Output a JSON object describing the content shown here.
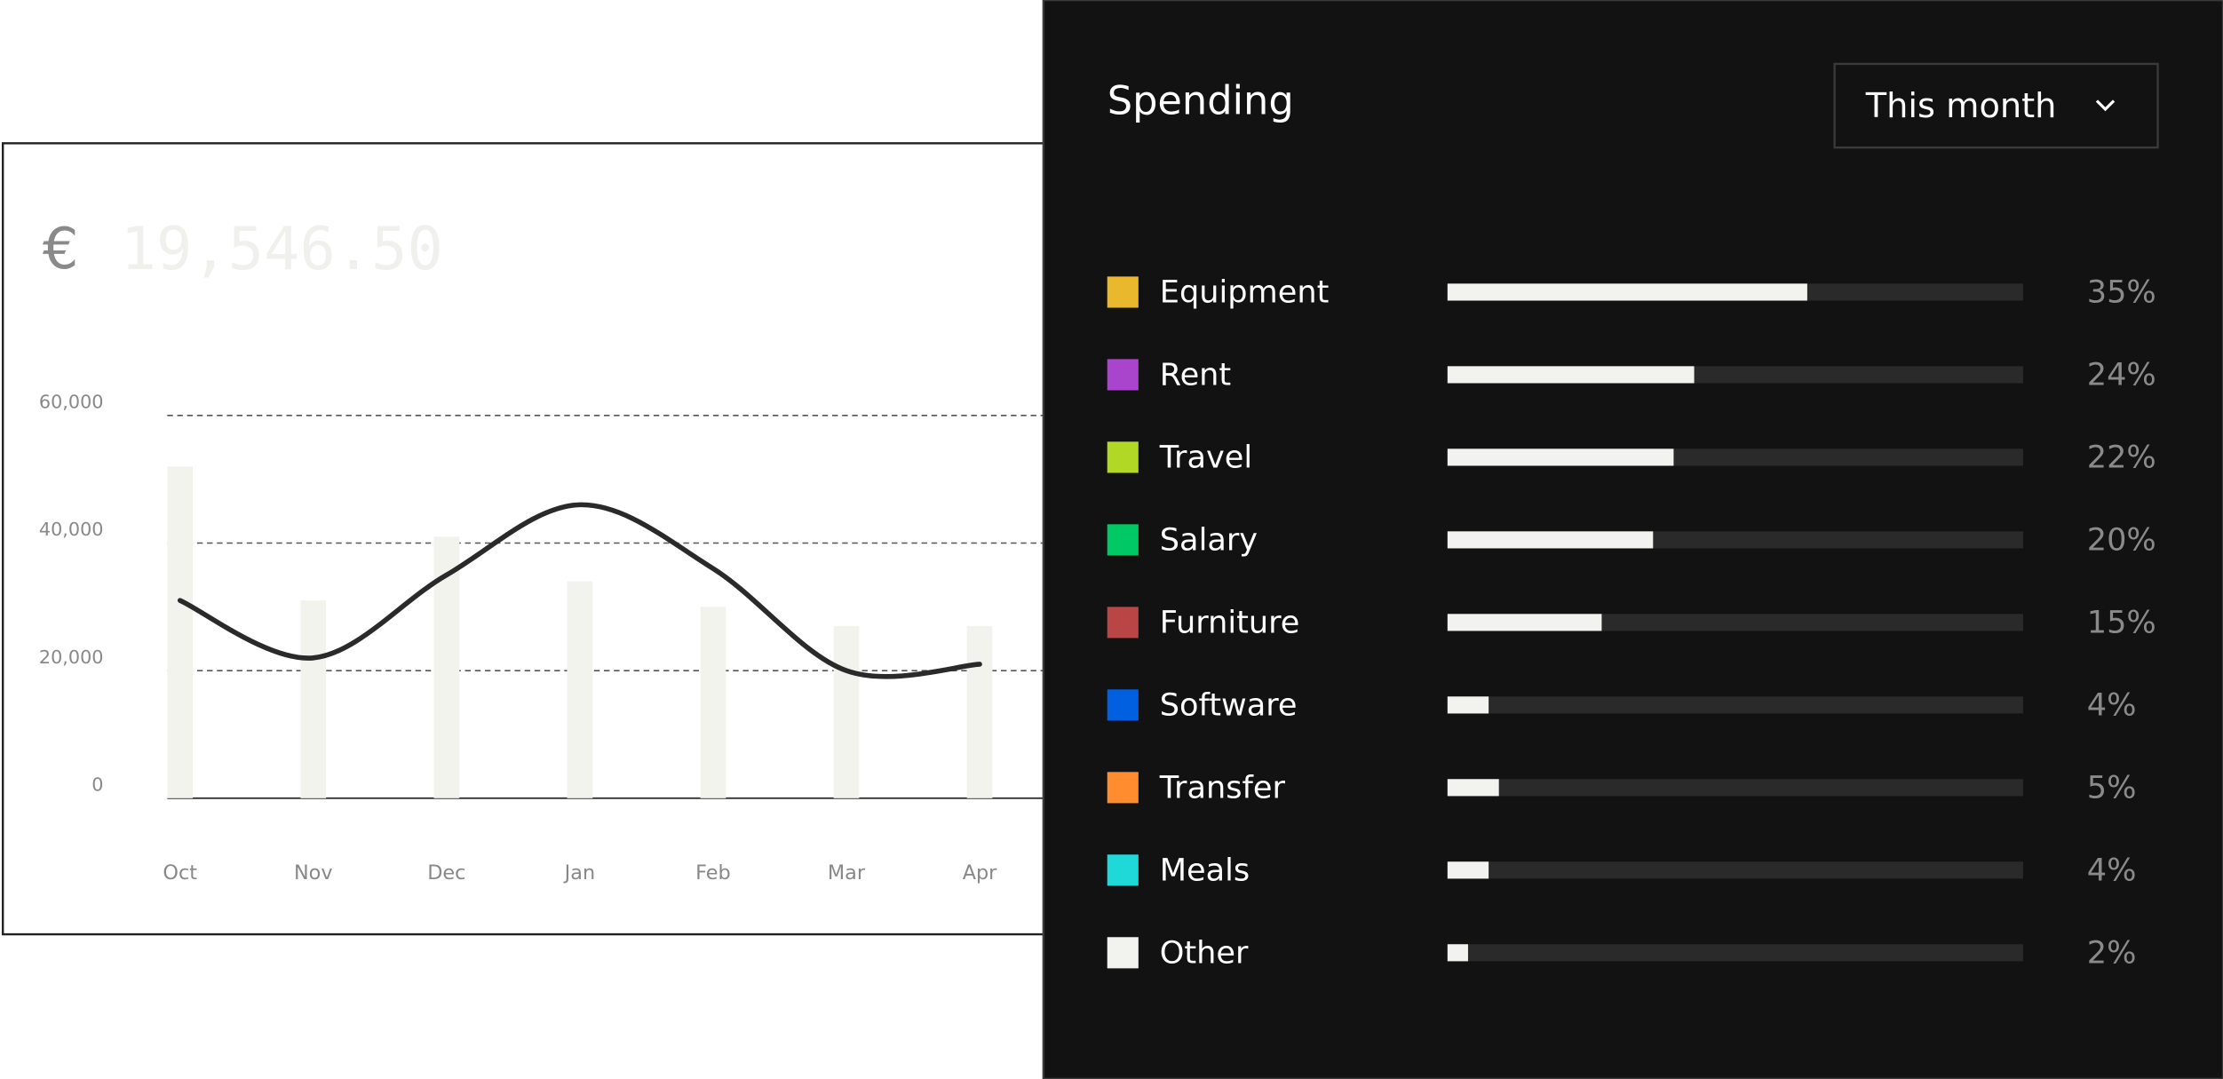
{
  "chart_data": {
    "type": "combo",
    "currency": "€",
    "amount": "19,546.50",
    "categories": [
      "Oct",
      "Nov",
      "Dec",
      "Jan",
      "Feb",
      "Mar",
      "Apr"
    ],
    "series": [
      {
        "type": "bar",
        "color": "#f3f3ee",
        "values": [
          52000,
          31000,
          41000,
          34000,
          30000,
          27000,
          27000
        ]
      },
      {
        "type": "line",
        "color": "#2a2a2a",
        "values": [
          31000,
          22000,
          35000,
          46000,
          36000,
          20000,
          21000
        ]
      }
    ],
    "ylim": [
      0,
      60000
    ],
    "yticks": [
      0,
      {
        "value": 20000,
        "label": "20,000"
      },
      {
        "value": 40000,
        "label": "40,000"
      },
      {
        "value": 60000,
        "label": "60,000"
      }
    ],
    "grid": true
  },
  "spending": {
    "title": "Spending",
    "period": "This month",
    "xlim": [
      0,
      56
    ],
    "items": [
      {
        "name": "Equipment",
        "color": "#e9b82c",
        "percent": 35,
        "percent_label": "35%"
      },
      {
        "name": "Rent",
        "color": "#a845cc",
        "percent": 24,
        "percent_label": "24%"
      },
      {
        "name": "Travel",
        "color": "#b2d826",
        "percent": 22,
        "percent_label": "22%"
      },
      {
        "name": "Salary",
        "color": "#00c864",
        "percent": 20,
        "percent_label": "20%"
      },
      {
        "name": "Furniture",
        "color": "#b94545",
        "percent": 15,
        "percent_label": "15%"
      },
      {
        "name": "Software",
        "color": "#0060e0",
        "percent": 4,
        "percent_label": "4%"
      },
      {
        "name": "Transfer",
        "color": "#ff8c2e",
        "percent": 5,
        "percent_label": "5%"
      },
      {
        "name": "Meals",
        "color": "#1fd8d8",
        "percent": 4,
        "percent_label": "4%"
      },
      {
        "name": "Other",
        "color": "#f2f2ee",
        "percent": 2,
        "percent_label": "2%"
      }
    ]
  }
}
